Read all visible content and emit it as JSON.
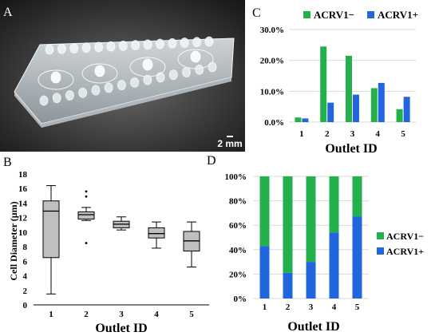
{
  "colors": {
    "green": "#22b14c",
    "blue": "#2266dd",
    "box": "#bfbfbf",
    "grid": "#d9d9d9",
    "photo_bg": "#2a2a2a"
  },
  "panels": {
    "A": {
      "label": "A",
      "scale_bar": "2 mm"
    },
    "B": {
      "label": "B"
    },
    "C": {
      "label": "C"
    },
    "D": {
      "label": "D"
    }
  },
  "chart_data": [
    {
      "panel": "B",
      "type": "box",
      "xlabel": "Outlet ID",
      "ylabel": "Cell Diameter (μm)",
      "categories": [
        "1",
        "2",
        "3",
        "4",
        "5"
      ],
      "ylim": [
        0,
        18
      ],
      "yticks": [
        "0",
        "2",
        "4",
        "6",
        "8",
        "10",
        "12",
        "14",
        "16",
        "18"
      ],
      "boxes": [
        {
          "min": 1.5,
          "q1": 6.5,
          "median": 12.9,
          "q3": 14.3,
          "max": 16.4,
          "outliers": []
        },
        {
          "min": 11.6,
          "q1": 11.8,
          "median": 12.4,
          "q3": 12.8,
          "max": 13.4,
          "outliers": [
            14.9,
            15.6,
            8.5
          ]
        },
        {
          "min": 10.3,
          "q1": 10.6,
          "median": 11.1,
          "q3": 11.5,
          "max": 12.1,
          "outliers": []
        },
        {
          "min": 7.8,
          "q1": 9.2,
          "median": 9.8,
          "q3": 10.6,
          "max": 11.4,
          "outliers": []
        },
        {
          "min": 5.2,
          "q1": 7.4,
          "median": 8.8,
          "q3": 10.1,
          "max": 11.4,
          "outliers": []
        }
      ]
    },
    {
      "panel": "C",
      "type": "bar",
      "xlabel": "Outlet ID",
      "categories": [
        "1",
        "2",
        "3",
        "4",
        "5"
      ],
      "ylim": [
        0,
        30
      ],
      "yticks": [
        "0.0%",
        "10.0%",
        "20.0%",
        "30.0%"
      ],
      "legend_position": "top",
      "series": [
        {
          "name": "ACRV1−",
          "values": [
            1.5,
            24.5,
            21.5,
            11,
            4.2
          ]
        },
        {
          "name": "ACRV1+",
          "values": [
            1.2,
            6.3,
            8.9,
            12.7,
            8.2
          ]
        }
      ]
    },
    {
      "panel": "D",
      "type": "stacked-bar",
      "xlabel": "Outlet ID",
      "categories": [
        "1",
        "2",
        "3",
        "4",
        "5"
      ],
      "ylim": [
        0,
        100
      ],
      "yticks": [
        "0%",
        "20%",
        "40%",
        "60%",
        "80%",
        "100%"
      ],
      "legend_position": "right",
      "series": [
        {
          "name": "ACRV1−",
          "values": [
            57,
            79,
            70,
            46,
            33
          ]
        },
        {
          "name": "ACRV1+",
          "values": [
            43,
            21,
            30,
            54,
            67
          ]
        }
      ]
    }
  ]
}
